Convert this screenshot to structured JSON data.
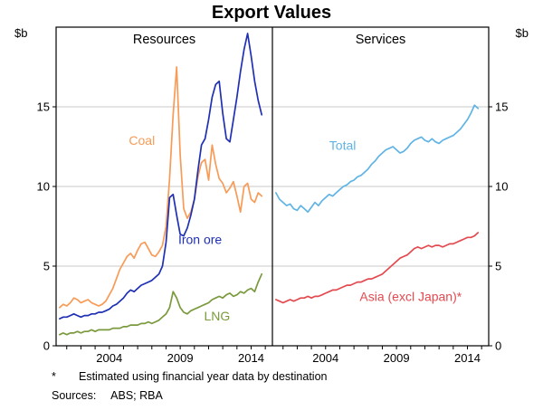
{
  "footnote": {
    "marker": "*",
    "text": "Estimated using financial year data by destination"
  },
  "sources": {
    "label": "Sources:",
    "text": "ABS; RBA"
  },
  "chart_data": {
    "type": "line",
    "title": "Export Values",
    "unit_label": "$b",
    "x_start": 2000.5,
    "x_step": 0.25,
    "x_range": [
      2000.25,
      2015.5
    ],
    "ylim": [
      0,
      20
    ],
    "yticks": [
      0,
      5,
      10,
      15
    ],
    "xticks_labeled": [
      2004,
      2009,
      2014
    ],
    "grid_color": "#c9c9c9",
    "panels": [
      {
        "title": "Resources",
        "series": [
          {
            "name": "Coal",
            "color": "#f79b57",
            "label_x": 2006.3,
            "label_y": 12.6,
            "values": [
              2.4,
              2.6,
              2.5,
              2.7,
              3.0,
              2.9,
              2.7,
              2.8,
              2.9,
              2.7,
              2.6,
              2.5,
              2.6,
              2.8,
              3.2,
              3.6,
              4.2,
              4.8,
              5.2,
              5.6,
              5.8,
              5.5,
              6.0,
              6.4,
              6.5,
              6.1,
              5.7,
              5.6,
              5.9,
              6.3,
              7.5,
              10.5,
              14.5,
              17.5,
              12.0,
              8.6,
              8.0,
              8.4,
              9.2,
              10.6,
              11.5,
              11.7,
              10.4,
              12.6,
              11.4,
              10.5,
              10.2,
              9.6,
              9.9,
              10.3,
              9.4,
              8.4,
              10.0,
              10.2,
              9.2,
              9.0,
              9.6,
              9.4
            ]
          },
          {
            "name": "Iron ore",
            "color": "#1f30b4",
            "label_x": 2010.4,
            "label_y": 6.4,
            "values": [
              1.7,
              1.8,
              1.8,
              1.9,
              2.0,
              1.9,
              1.8,
              1.9,
              1.9,
              2.0,
              2.0,
              2.1,
              2.1,
              2.2,
              2.3,
              2.5,
              2.6,
              2.8,
              3.0,
              3.3,
              3.5,
              3.4,
              3.6,
              3.8,
              3.9,
              4.0,
              4.1,
              4.3,
              4.5,
              5.0,
              6.5,
              9.3,
              9.5,
              8.2,
              7.0,
              6.9,
              7.4,
              8.2,
              9.2,
              11.0,
              12.6,
              13.0,
              14.2,
              15.6,
              16.4,
              16.6,
              14.6,
              13.0,
              12.8,
              14.2,
              15.6,
              17.2,
              18.6,
              19.6,
              18.2,
              16.6,
              15.4,
              14.5
            ]
          },
          {
            "name": "LNG",
            "color": "#7a9a3d",
            "label_x": 2011.6,
            "label_y": 1.6,
            "values": [
              0.7,
              0.8,
              0.7,
              0.8,
              0.8,
              0.9,
              0.8,
              0.9,
              0.9,
              1.0,
              0.9,
              1.0,
              1.0,
              1.0,
              1.0,
              1.1,
              1.1,
              1.1,
              1.2,
              1.2,
              1.3,
              1.3,
              1.3,
              1.4,
              1.4,
              1.5,
              1.4,
              1.5,
              1.6,
              1.8,
              2.0,
              2.4,
              3.4,
              3.0,
              2.4,
              2.1,
              2.0,
              2.2,
              2.3,
              2.4,
              2.5,
              2.6,
              2.7,
              2.9,
              3.0,
              3.1,
              3.0,
              3.2,
              3.3,
              3.1,
              3.2,
              3.4,
              3.3,
              3.5,
              3.6,
              3.4,
              4.0,
              4.5
            ]
          }
        ]
      },
      {
        "title": "Services",
        "series": [
          {
            "name": "Total",
            "color": "#5fb4e5",
            "label_x": 2005.2,
            "label_y": 12.3,
            "values": [
              9.6,
              9.2,
              9.0,
              8.8,
              8.9,
              8.6,
              8.5,
              8.8,
              8.6,
              8.4,
              8.7,
              9.0,
              8.8,
              9.1,
              9.3,
              9.5,
              9.4,
              9.6,
              9.8,
              10.0,
              10.1,
              10.3,
              10.4,
              10.6,
              10.7,
              10.9,
              11.1,
              11.4,
              11.6,
              11.9,
              12.1,
              12.3,
              12.4,
              12.5,
              12.3,
              12.1,
              12.2,
              12.4,
              12.7,
              12.9,
              13.0,
              13.1,
              12.9,
              12.8,
              13.0,
              12.8,
              12.7,
              12.9,
              13.0,
              13.1,
              13.2,
              13.4,
              13.6,
              13.9,
              14.2,
              14.6,
              15.1,
              14.9
            ]
          },
          {
            "name": "Asia (excl Japan)*",
            "color": "#e34a4f",
            "label_x": 2010.0,
            "label_y": 2.8,
            "values": [
              2.9,
              2.8,
              2.7,
              2.8,
              2.9,
              2.8,
              2.9,
              3.0,
              3.0,
              3.1,
              3.0,
              3.1,
              3.1,
              3.2,
              3.3,
              3.4,
              3.5,
              3.5,
              3.6,
              3.7,
              3.8,
              3.8,
              3.9,
              4.0,
              4.0,
              4.1,
              4.2,
              4.2,
              4.3,
              4.4,
              4.5,
              4.7,
              4.9,
              5.1,
              5.3,
              5.5,
              5.6,
              5.7,
              5.9,
              6.1,
              6.2,
              6.1,
              6.2,
              6.3,
              6.2,
              6.3,
              6.3,
              6.2,
              6.3,
              6.4,
              6.4,
              6.5,
              6.6,
              6.7,
              6.8,
              6.8,
              6.9,
              7.1
            ]
          }
        ]
      }
    ]
  }
}
